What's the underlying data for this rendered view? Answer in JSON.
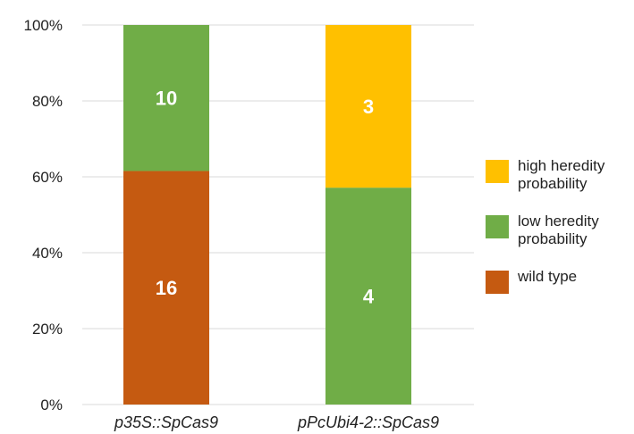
{
  "chart_data": {
    "type": "bar",
    "stacked": "percent",
    "categories": [
      "p35S::SpCas9",
      "pPcUbi4-2::SpCas9"
    ],
    "series": [
      {
        "name": "wild type",
        "color": "#C55A11",
        "values": [
          16,
          0
        ]
      },
      {
        "name": "low heredity probability",
        "color": "#70AD47",
        "values": [
          10,
          4
        ]
      },
      {
        "name": "high heredity probability",
        "color": "#FFC000",
        "values": [
          0,
          3
        ]
      }
    ],
    "y_ticks": [
      "0%",
      "20%",
      "40%",
      "60%",
      "80%",
      "100%"
    ],
    "ylim": [
      0,
      100
    ],
    "grid": true,
    "legend_position": "right",
    "title": "",
    "xlabel": "",
    "ylabel": ""
  },
  "legend": [
    {
      "label": "high heredity probability",
      "color": "#FFC000"
    },
    {
      "label": "low heredity probability",
      "color": "#70AD47"
    },
    {
      "label": "wild type",
      "color": "#C55A11"
    }
  ]
}
